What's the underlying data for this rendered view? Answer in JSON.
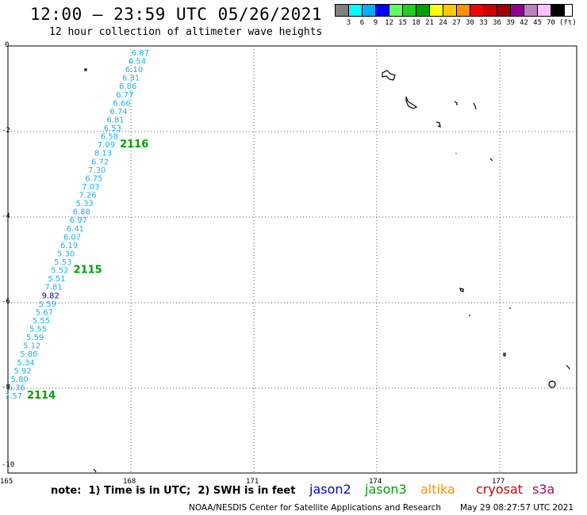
{
  "header": {
    "title": "12:00 — 23:59 UTC 05/26/2021",
    "subtitle": "12 hour collection of altimeter wave heights"
  },
  "legend": {
    "unit": "(ft)",
    "colors": [
      "#808080",
      "#00ffff",
      "#00b0ff",
      "#0000ff",
      "#60ff60",
      "#20d020",
      "#00a000",
      "#ffff00",
      "#ffc800",
      "#ff9000",
      "#ff0000",
      "#d00000",
      "#a00000",
      "#900090",
      "#c080c0",
      "#ffc0ff",
      "#000000"
    ],
    "labels": [
      "3",
      "6",
      "9",
      "12",
      "15",
      "18",
      "21",
      "24",
      "27",
      "30",
      "33",
      "36",
      "39",
      "42",
      "45",
      "70"
    ]
  },
  "axes": {
    "lat_labels": [
      "0",
      "-2",
      "-4",
      "-6",
      "-8",
      "-10"
    ],
    "lon_labels": [
      "165",
      "168",
      "171",
      "174",
      "177"
    ]
  },
  "track": {
    "points": [
      {
        "v": "6.87",
        "c": "#1ab0f0"
      },
      {
        "v": "6.54",
        "c": "#1ab0f0"
      },
      {
        "v": "6.10",
        "c": "#1ab0f0"
      },
      {
        "v": "6.31",
        "c": "#1ab0f0"
      },
      {
        "v": "6.86",
        "c": "#1ab0f0"
      },
      {
        "v": "6.77",
        "c": "#1ab0f0"
      },
      {
        "v": "6.66",
        "c": "#1ab0f0"
      },
      {
        "v": "6.74",
        "c": "#1ab0f0"
      },
      {
        "v": "6.81",
        "c": "#1ab0f0"
      },
      {
        "v": "6.53",
        "c": "#1ab0f0"
      },
      {
        "v": "6.58",
        "c": "#1ab0f0"
      },
      {
        "v": "7.09",
        "c": "#1ab0f0"
      },
      {
        "v": "8.13",
        "c": "#1ab0f0"
      },
      {
        "v": "6.72",
        "c": "#1ab0f0"
      },
      {
        "v": "7.30",
        "c": "#1ab0f0"
      },
      {
        "v": "6.75",
        "c": "#1ab0f0"
      },
      {
        "v": "7.03",
        "c": "#1ab0f0"
      },
      {
        "v": "7.26",
        "c": "#1ab0f0"
      },
      {
        "v": "5.33",
        "c": "#1ab0f0"
      },
      {
        "v": "6.88",
        "c": "#1ab0f0"
      },
      {
        "v": "6.97",
        "c": "#1ab0f0"
      },
      {
        "v": "6.41",
        "c": "#1ab0f0"
      },
      {
        "v": "6.07",
        "c": "#1ab0f0"
      },
      {
        "v": "6.19",
        "c": "#1ab0f0"
      },
      {
        "v": "5.30",
        "c": "#1ab0f0"
      },
      {
        "v": "5.53",
        "c": "#1ab0f0"
      },
      {
        "v": "5.52",
        "c": "#1ab0f0"
      },
      {
        "v": "5.51",
        "c": "#1ab0f0"
      },
      {
        "v": "7.81",
        "c": "#1ab0f0"
      },
      {
        "v": "9.82",
        "c": "#0000d0"
      },
      {
        "v": "5.59",
        "c": "#1ab0f0"
      },
      {
        "v": "5.67",
        "c": "#1ab0f0"
      },
      {
        "v": "5.55",
        "c": "#1ab0f0"
      },
      {
        "v": "5.55",
        "c": "#1ab0f0"
      },
      {
        "v": "5.59",
        "c": "#1ab0f0"
      },
      {
        "v": "5.12",
        "c": "#1ab0f0"
      },
      {
        "v": "5.86",
        "c": "#1ab0f0"
      },
      {
        "v": "5.34",
        "c": "#1ab0f0"
      },
      {
        "v": "5.92",
        "c": "#1ab0f0"
      },
      {
        "v": "5.80",
        "c": "#1ab0f0"
      },
      {
        "v": "6.36",
        "c": "#1ab0f0"
      },
      {
        "v": "7.57",
        "c": "#1ab0f0"
      }
    ],
    "orbit_labels": [
      {
        "text": "2116",
        "after_index": 11
      },
      {
        "text": "2115",
        "after_index": 26
      },
      {
        "text": "2114",
        "after_index": 41
      }
    ]
  },
  "footer": {
    "note": "note:  1) Time is in UTC;  2) SWH is in feet",
    "satellites": [
      {
        "name": "jason2",
        "color": "#0000e0"
      },
      {
        "name": "jason3",
        "color": "#00a000"
      },
      {
        "name": "altika",
        "color": "#ff9000"
      },
      {
        "name": "cryosat",
        "color": "#d00000"
      },
      {
        "name": "s3a",
        "color": "#b00060"
      }
    ],
    "credit": "NOAA/NESDIS Center for Satellite Applications and Research",
    "timestamp": "May 29 08:27:57 UTC 2021"
  }
}
